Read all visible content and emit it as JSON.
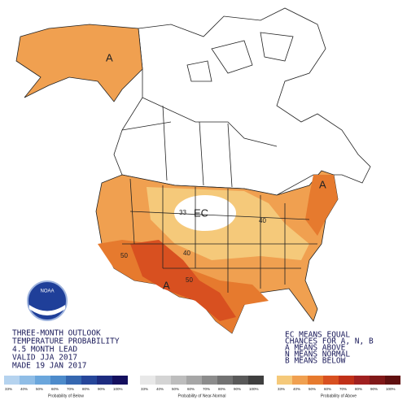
{
  "map": {
    "labels": {
      "alaska": "A",
      "ec": "EC",
      "southwest": "A",
      "northeast": "A",
      "contour_33": "33",
      "contour_40_west": "40",
      "contour_40_east": "40",
      "contour_50_west": "50",
      "contour_50_south": "50"
    },
    "logo": "NOAA"
  },
  "info": {
    "lines": [
      "THREE-MONTH OUTLOOK",
      "TEMPERATURE PROBABILITY",
      "4.5 MONTH LEAD",
      "VALID JJA 2017",
      "MADE 19 JAN 2017"
    ]
  },
  "key": {
    "lines": [
      "EC MEANS EQUAL",
      "CHANCES FOR A, N, B",
      "A MEANS ABOVE",
      "N MEANS NORMAL",
      "B MEANS BELOW"
    ]
  },
  "legend": {
    "groups": [
      {
        "caption": "Probability of Below",
        "ticks": [
          "33%",
          "40%",
          "50%",
          "60%",
          "70%",
          "80%",
          "90%",
          "100%"
        ],
        "colors": [
          "#b5d3ef",
          "#8fbde6",
          "#6aa6dc",
          "#4d8bcb",
          "#3567b0",
          "#26469a",
          "#1d2c80",
          "#140f5e"
        ]
      },
      {
        "caption": "Probability of Near-Normal",
        "ticks": [
          "33%",
          "40%",
          "50%",
          "60%",
          "70%",
          "80%",
          "90%",
          "100%"
        ],
        "colors": [
          "#e8e8e8",
          "#d4d4d4",
          "#bdbdbd",
          "#a6a6a6",
          "#8c8c8c",
          "#727272",
          "#595959",
          "#3f3f3f"
        ]
      },
      {
        "caption": "Probability of Above",
        "ticks": [
          "33%",
          "40%",
          "50%",
          "60%",
          "70%",
          "80%",
          "90%",
          "100%"
        ],
        "colors": [
          "#f5c97a",
          "#f0a050",
          "#e67a2e",
          "#d85020",
          "#c03018",
          "#a02020",
          "#801818",
          "#601010"
        ]
      }
    ]
  }
}
